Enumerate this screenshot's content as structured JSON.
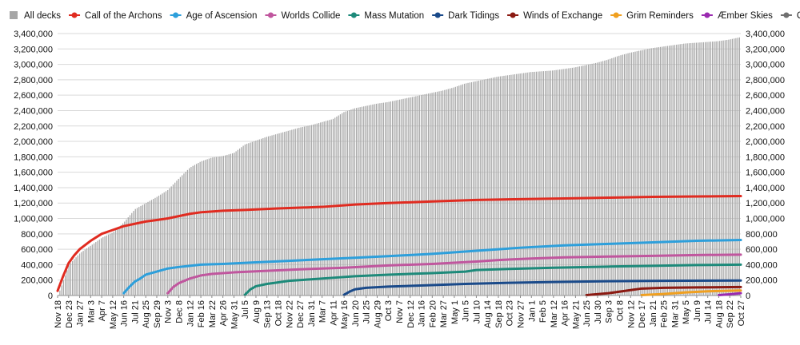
{
  "chart_data": {
    "type": "area",
    "y_ticks": [
      0,
      200000,
      400000,
      600000,
      800000,
      1000000,
      1200000,
      1400000,
      1600000,
      1800000,
      2000000,
      2200000,
      2400000,
      2600000,
      2800000,
      3000000,
      3200000,
      3400000
    ],
    "y_tick_labels": [
      "0",
      "200,000",
      "400,000",
      "600,000",
      "800,000",
      "1,000,000",
      "1,200,000",
      "1,400,000",
      "1,600,000",
      "1,800,000",
      "2,000,000",
      "2,200,000",
      "2,400,000",
      "2,600,000",
      "2,800,000",
      "3,000,000",
      "3,200,000",
      "3,400,000"
    ],
    "ylim": [
      0,
      3400000
    ],
    "x_tick_labels": [
      "Nov 18",
      "Dec 23",
      "Jan 27",
      "Mar 3",
      "Apr 7",
      "May 12",
      "Jun 16",
      "Jul 21",
      "Aug 25",
      "Sep 29",
      "Nov 3",
      "Dec 8",
      "Jan 12",
      "Feb 16",
      "Mar 22",
      "Apr 26",
      "May 31",
      "Jul 5",
      "Aug 9",
      "Sep 13",
      "Oct 18",
      "Nov 22",
      "Dec 27",
      "Jan 31",
      "Mar 7",
      "Apr 11",
      "May 16",
      "Jun 20",
      "Jul 25",
      "Aug 29",
      "Oct 3",
      "Nov 7",
      "Dec 12",
      "Jan 16",
      "Feb 20",
      "Mar 27",
      "May 1",
      "Jun 5",
      "Jul 10",
      "Aug 14",
      "Sep 18",
      "Oct 23",
      "Nov 27",
      "Jan 1",
      "Feb 5",
      "Mar 12",
      "Apr 16",
      "May 21",
      "Jun 25",
      "Jul 30",
      "Sep 3",
      "Oct 8",
      "Nov 12",
      "Dec 17",
      "Jan 21",
      "Feb 25",
      "Mar 31",
      "May 5",
      "Jun 9",
      "Jul 14",
      "Aug 18",
      "Sep 22",
      "Oct 27"
    ],
    "grid": true,
    "legend": "top",
    "series": [
      {
        "name": "All decks",
        "color": "#a6a6a6",
        "style": "bars",
        "points": [
          [
            0,
            0
          ],
          [
            1,
            400000
          ],
          [
            2,
            550000
          ],
          [
            3,
            650000
          ],
          [
            4,
            750000
          ],
          [
            5,
            820000
          ],
          [
            6,
            950000
          ],
          [
            7,
            1120000
          ],
          [
            8,
            1200000
          ],
          [
            9,
            1280000
          ],
          [
            10,
            1370000
          ],
          [
            11,
            1520000
          ],
          [
            12,
            1660000
          ],
          [
            13,
            1740000
          ],
          [
            14,
            1790000
          ],
          [
            15,
            1810000
          ],
          [
            16,
            1850000
          ],
          [
            17,
            1960000
          ],
          [
            18,
            2010000
          ],
          [
            19,
            2060000
          ],
          [
            20,
            2100000
          ],
          [
            21,
            2140000
          ],
          [
            22,
            2180000
          ],
          [
            23,
            2210000
          ],
          [
            24,
            2250000
          ],
          [
            25,
            2290000
          ],
          [
            26,
            2380000
          ],
          [
            27,
            2430000
          ],
          [
            28,
            2460000
          ],
          [
            29,
            2490000
          ],
          [
            30,
            2510000
          ],
          [
            31,
            2540000
          ],
          [
            32,
            2570000
          ],
          [
            33,
            2600000
          ],
          [
            34,
            2630000
          ],
          [
            35,
            2660000
          ],
          [
            36,
            2700000
          ],
          [
            37,
            2750000
          ],
          [
            38,
            2780000
          ],
          [
            39,
            2810000
          ],
          [
            40,
            2840000
          ],
          [
            41,
            2860000
          ],
          [
            42,
            2880000
          ],
          [
            43,
            2900000
          ],
          [
            44,
            2910000
          ],
          [
            45,
            2920000
          ],
          [
            46,
            2940000
          ],
          [
            47,
            2960000
          ],
          [
            48,
            2990000
          ],
          [
            49,
            3020000
          ],
          [
            50,
            3060000
          ],
          [
            51,
            3110000
          ],
          [
            52,
            3150000
          ],
          [
            53,
            3180000
          ],
          [
            54,
            3210000
          ],
          [
            55,
            3230000
          ],
          [
            56,
            3250000
          ],
          [
            57,
            3270000
          ],
          [
            58,
            3280000
          ],
          [
            59,
            3290000
          ],
          [
            60,
            3300000
          ],
          [
            61,
            3320000
          ],
          [
            62,
            3350000
          ]
        ]
      },
      {
        "name": "Call of the Archons",
        "color": "#e02b20",
        "points": [
          [
            0,
            60000
          ],
          [
            0.5,
            250000
          ],
          [
            1,
            420000
          ],
          [
            1.5,
            520000
          ],
          [
            2,
            600000
          ],
          [
            3,
            710000
          ],
          [
            4,
            800000
          ],
          [
            5,
            850000
          ],
          [
            6,
            900000
          ],
          [
            7,
            930000
          ],
          [
            8,
            960000
          ],
          [
            9,
            980000
          ],
          [
            10,
            1000000
          ],
          [
            11,
            1030000
          ],
          [
            12,
            1060000
          ],
          [
            13,
            1080000
          ],
          [
            14,
            1090000
          ],
          [
            15,
            1100000
          ],
          [
            17,
            1110000
          ],
          [
            20,
            1130000
          ],
          [
            24,
            1150000
          ],
          [
            27,
            1180000
          ],
          [
            30,
            1200000
          ],
          [
            34,
            1220000
          ],
          [
            38,
            1240000
          ],
          [
            42,
            1250000
          ],
          [
            46,
            1260000
          ],
          [
            50,
            1270000
          ],
          [
            54,
            1280000
          ],
          [
            58,
            1285000
          ],
          [
            62,
            1290000
          ]
        ]
      },
      {
        "name": "Age of Ascension",
        "color": "#2d9fdb",
        "points": [
          [
            6,
            30000
          ],
          [
            6.5,
            110000
          ],
          [
            7,
            180000
          ],
          [
            7.5,
            220000
          ],
          [
            8,
            270000
          ],
          [
            9,
            310000
          ],
          [
            10,
            350000
          ],
          [
            11,
            370000
          ],
          [
            12,
            385000
          ],
          [
            13,
            400000
          ],
          [
            15,
            410000
          ],
          [
            18,
            430000
          ],
          [
            21,
            450000
          ],
          [
            24,
            470000
          ],
          [
            27,
            490000
          ],
          [
            30,
            510000
          ],
          [
            34,
            540000
          ],
          [
            38,
            580000
          ],
          [
            42,
            620000
          ],
          [
            46,
            650000
          ],
          [
            50,
            670000
          ],
          [
            54,
            690000
          ],
          [
            58,
            710000
          ],
          [
            62,
            720000
          ]
        ]
      },
      {
        "name": "Worlds Collide",
        "color": "#c0569e",
        "points": [
          [
            10,
            30000
          ],
          [
            10.5,
            110000
          ],
          [
            11,
            160000
          ],
          [
            12,
            220000
          ],
          [
            13,
            260000
          ],
          [
            14,
            280000
          ],
          [
            16,
            300000
          ],
          [
            19,
            320000
          ],
          [
            22,
            340000
          ],
          [
            26,
            360000
          ],
          [
            30,
            390000
          ],
          [
            34,
            410000
          ],
          [
            38,
            440000
          ],
          [
            40,
            460000
          ],
          [
            43,
            480000
          ],
          [
            46,
            495000
          ],
          [
            50,
            505000
          ],
          [
            54,
            515000
          ],
          [
            58,
            525000
          ],
          [
            62,
            530000
          ]
        ]
      },
      {
        "name": "Mass Mutation",
        "color": "#1d8a7a",
        "points": [
          [
            17,
            10000
          ],
          [
            17.5,
            80000
          ],
          [
            18,
            120000
          ],
          [
            19,
            150000
          ],
          [
            20,
            170000
          ],
          [
            21,
            190000
          ],
          [
            23,
            210000
          ],
          [
            25,
            230000
          ],
          [
            27,
            250000
          ],
          [
            30,
            270000
          ],
          [
            34,
            290000
          ],
          [
            37,
            310000
          ],
          [
            38,
            330000
          ],
          [
            41,
            345000
          ],
          [
            45,
            360000
          ],
          [
            50,
            375000
          ],
          [
            54,
            385000
          ],
          [
            58,
            395000
          ],
          [
            62,
            400000
          ]
        ]
      },
      {
        "name": "Dark Tidings",
        "color": "#1a4a8a",
        "points": [
          [
            26,
            10000
          ],
          [
            26.5,
            50000
          ],
          [
            27,
            80000
          ],
          [
            28,
            100000
          ],
          [
            30,
            115000
          ],
          [
            33,
            130000
          ],
          [
            37,
            150000
          ],
          [
            41,
            165000
          ],
          [
            45,
            175000
          ],
          [
            50,
            185000
          ],
          [
            55,
            190000
          ],
          [
            62,
            195000
          ]
        ]
      },
      {
        "name": "Winds of Exchange",
        "color": "#8b1a12",
        "points": [
          [
            48,
            5000
          ],
          [
            50,
            30000
          ],
          [
            52,
            70000
          ],
          [
            53,
            90000
          ],
          [
            55,
            100000
          ],
          [
            58,
            105000
          ],
          [
            62,
            110000
          ]
        ]
      },
      {
        "name": "Grim Reminders",
        "color": "#f0a020",
        "points": [
          [
            53,
            5000
          ],
          [
            55,
            20000
          ],
          [
            57,
            40000
          ],
          [
            59,
            55000
          ],
          [
            62,
            65000
          ]
        ]
      },
      {
        "name": "Æmber Skies",
        "color": "#9a2ab0",
        "points": [
          [
            60,
            5000
          ],
          [
            61,
            15000
          ],
          [
            62,
            30000
          ]
        ]
      },
      {
        "name": "Other",
        "color": "#707070",
        "points": []
      }
    ]
  }
}
